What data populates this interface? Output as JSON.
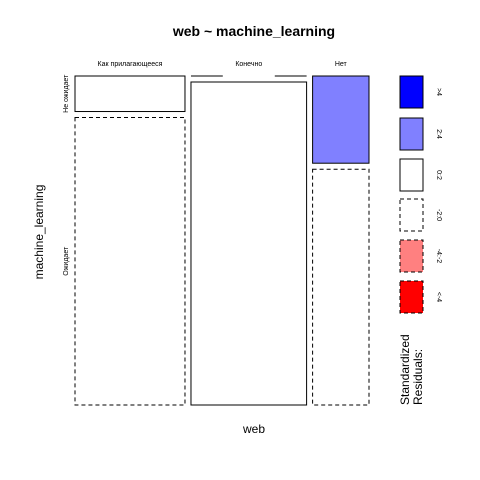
{
  "chart_data": {
    "type": "mosaic",
    "title": "web ~ machine_learning",
    "xlabel": "web",
    "ylabel": "machine_learning",
    "x_categories": [
      "Как прилагающееся",
      "Конечно",
      "Нет"
    ],
    "y_categories": [
      "Не ожидает",
      "Ожидает"
    ],
    "cells": [
      {
        "x": "Как прилагающееся",
        "y": "Не ожидает",
        "proportion": 0.11,
        "residual_class": "0:2",
        "border": "solid"
      },
      {
        "x": "Как прилагающееся",
        "y": "Ожидает",
        "proportion": 0.89,
        "residual_class": "-2:0",
        "border": "dashed"
      },
      {
        "x": "Конечно",
        "y": "Не ожидает",
        "proportion": 0.0,
        "residual_class": "-2:0",
        "border": "solid"
      },
      {
        "x": "Конечно",
        "y": "Ожидает",
        "proportion": 1.0,
        "residual_class": "0:2",
        "border": "solid"
      },
      {
        "x": "Нет",
        "y": "Не ожидает",
        "proportion": 0.27,
        "residual_class": "2:4",
        "border": "solid"
      },
      {
        "x": "Нет",
        "y": "Ожидает",
        "proportion": 0.73,
        "residual_class": "-2:0",
        "border": "dashed"
      }
    ],
    "column_widths": [
      0.39,
      0.41,
      0.2
    ],
    "legend": {
      "title_lines": [
        "Standardized",
        "Residuals:"
      ],
      "entries": [
        {
          "label": ">4",
          "fill": "#0000ff",
          "border": "solid"
        },
        {
          "label": "2:4",
          "fill": "#8080ff",
          "border": "solid"
        },
        {
          "label": "0:2",
          "fill": "#ffffff",
          "border": "solid"
        },
        {
          "label": "-2:0",
          "fill": "#ffffff",
          "border": "dashed"
        },
        {
          "label": "-4:-2",
          "fill": "#ff8080",
          "border": "dashed"
        },
        {
          "label": "<-4",
          "fill": "#ff0000",
          "border": "dashed"
        }
      ]
    }
  }
}
